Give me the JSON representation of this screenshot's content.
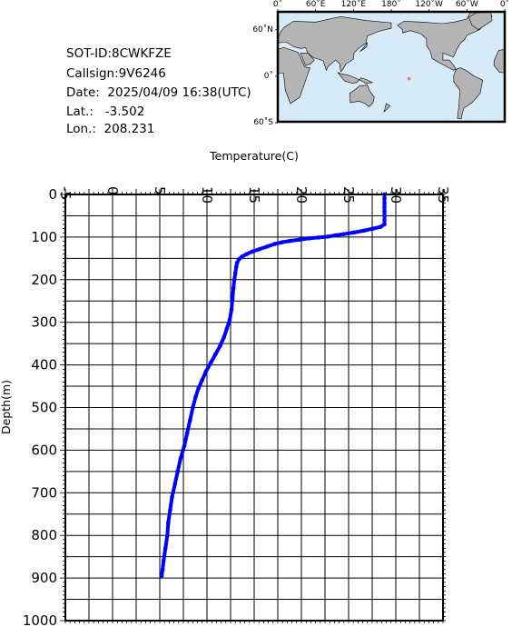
{
  "info": {
    "sot_id": "SOT-ID:8CWKFZE",
    "callsign": "Callsign:9V6246",
    "date": "Date:  2025/04/09 16:38(UTC)",
    "lat": "Lat.:   -3.502",
    "lon": "Lon.:  208.231"
  },
  "map": {
    "lon_labels": [
      "0˚",
      "60˚E",
      "120˚E",
      "180˚",
      "120˚W",
      "60˚W",
      "0˚"
    ],
    "lat_labels": [
      "60˚N",
      "0˚",
      "60˚S"
    ],
    "marker": {
      "lat": -3.502,
      "lon": 208.231,
      "symbol": "*"
    },
    "colors": {
      "ocean": "#d6ebf7",
      "land": "#b4b4b4",
      "marker": "#ff0000"
    }
  },
  "chart_data": {
    "type": "scatter",
    "xlabel": "Temperature(C)",
    "ylabel": "Depth(m)",
    "xlim": [
      -5,
      35
    ],
    "ylim": [
      1000,
      0
    ],
    "x_ticks": [
      "-5",
      "0",
      "5",
      "10",
      "15",
      "20",
      "25",
      "30",
      "35"
    ],
    "y_ticks": [
      "0",
      "100",
      "200",
      "300",
      "400",
      "500",
      "600",
      "700",
      "800",
      "900",
      "1000"
    ],
    "grid": true,
    "series": [
      {
        "color": "#0000ff",
        "points": [
          [
            28.8,
            0
          ],
          [
            28.8,
            10
          ],
          [
            28.8,
            20
          ],
          [
            28.8,
            30
          ],
          [
            28.8,
            40
          ],
          [
            28.8,
            50
          ],
          [
            28.8,
            60
          ],
          [
            28.8,
            70
          ],
          [
            28.4,
            76
          ],
          [
            27.6,
            80
          ],
          [
            26.6,
            85
          ],
          [
            25.6,
            89
          ],
          [
            24.5,
            93
          ],
          [
            23.6,
            96
          ],
          [
            22.8,
            99
          ],
          [
            21.8,
            101
          ],
          [
            20.8,
            103
          ],
          [
            19.8,
            106
          ],
          [
            18.8,
            109
          ],
          [
            18.0,
            112
          ],
          [
            17.2,
            116
          ],
          [
            16.4,
            122
          ],
          [
            15.6,
            128
          ],
          [
            14.8,
            134
          ],
          [
            14.2,
            140
          ],
          [
            13.7,
            146
          ],
          [
            13.4,
            152
          ],
          [
            13.2,
            160
          ],
          [
            13.1,
            170
          ],
          [
            13.0,
            185
          ],
          [
            12.9,
            200
          ],
          [
            12.8,
            220
          ],
          [
            12.7,
            245
          ],
          [
            12.6,
            270
          ],
          [
            12.4,
            295
          ],
          [
            12.1,
            315
          ],
          [
            11.8,
            335
          ],
          [
            11.4,
            355
          ],
          [
            10.9,
            375
          ],
          [
            10.4,
            395
          ],
          [
            9.9,
            415
          ],
          [
            9.5,
            435
          ],
          [
            9.1,
            455
          ],
          [
            8.8,
            475
          ],
          [
            8.5,
            500
          ],
          [
            8.2,
            530
          ],
          [
            7.9,
            560
          ],
          [
            7.6,
            590
          ],
          [
            7.2,
            620
          ],
          [
            6.9,
            650
          ],
          [
            6.6,
            680
          ],
          [
            6.3,
            710
          ],
          [
            6.1,
            740
          ],
          [
            5.9,
            770
          ],
          [
            5.8,
            800
          ],
          [
            5.6,
            830
          ],
          [
            5.4,
            860
          ],
          [
            5.3,
            880
          ],
          [
            5.2,
            895
          ]
        ]
      }
    ]
  }
}
